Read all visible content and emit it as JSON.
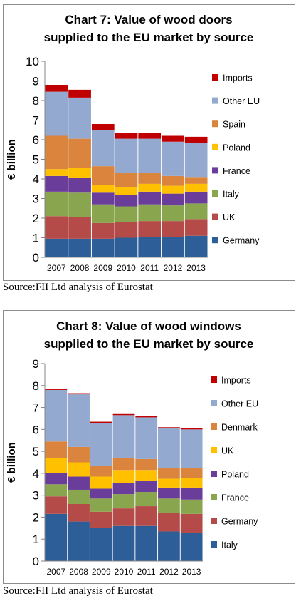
{
  "chart_data": [
    {
      "type": "bar",
      "stacked": true,
      "title_line1": "Chart 7: Value of wood doors",
      "title_line2": "supplied to the EU market by source",
      "xlabel": "",
      "ylabel": "€ billion",
      "ylim": [
        0,
        10
      ],
      "yticks": [
        "0",
        "1",
        "2",
        "3",
        "4",
        "5",
        "6",
        "7",
        "8",
        "9",
        "10"
      ],
      "grid": false,
      "legend_position": "right",
      "categories": [
        "2007",
        "2008",
        "2009",
        "2010",
        "2011",
        "2012",
        "2013"
      ],
      "series": [
        {
          "name": "Germany",
          "color": "#2e5e97",
          "values": [
            0.95,
            0.95,
            0.95,
            1.0,
            1.05,
            1.05,
            1.1
          ]
        },
        {
          "name": "UK",
          "color": "#b54b48",
          "values": [
            1.15,
            1.1,
            0.8,
            0.8,
            0.8,
            0.8,
            0.85
          ]
        },
        {
          "name": "Italy",
          "color": "#89a54e",
          "values": [
            1.25,
            1.25,
            0.95,
            0.8,
            0.85,
            0.8,
            0.8
          ]
        },
        {
          "name": "France",
          "color": "#6b3d9a",
          "values": [
            0.8,
            0.75,
            0.6,
            0.6,
            0.65,
            0.6,
            0.6
          ]
        },
        {
          "name": "Poland",
          "color": "#ffc000",
          "values": [
            0.35,
            0.5,
            0.4,
            0.4,
            0.4,
            0.4,
            0.4
          ]
        },
        {
          "name": "Spain",
          "color": "#db843d",
          "values": [
            1.7,
            1.5,
            0.95,
            0.7,
            0.55,
            0.5,
            0.35
          ]
        },
        {
          "name": "Other EU",
          "color": "#93a9cf",
          "values": [
            2.25,
            2.1,
            1.85,
            1.75,
            1.75,
            1.75,
            1.75
          ]
        },
        {
          "name": "Imports",
          "color": "#c00000",
          "values": [
            0.35,
            0.4,
            0.3,
            0.3,
            0.3,
            0.3,
            0.3
          ]
        }
      ],
      "legend_order": [
        "Imports",
        "Other EU",
        "Spain",
        "Poland",
        "France",
        "Italy",
        "UK",
        "Germany"
      ]
    },
    {
      "type": "bar",
      "stacked": true,
      "title_line1": "Chart 8: Value of wood windows",
      "title_line2": "supplied to the EU market by source",
      "xlabel": "",
      "ylabel": "€ billion",
      "ylim": [
        0,
        9
      ],
      "yticks": [
        "0",
        "1",
        "2",
        "3",
        "4",
        "5",
        "6",
        "7",
        "8",
        "9"
      ],
      "grid": false,
      "legend_position": "right",
      "categories": [
        "2007",
        "2008",
        "2009",
        "2010",
        "2011",
        "2012",
        "2013"
      ],
      "series": [
        {
          "name": "Italy",
          "color": "#2e5e97",
          "values": [
            2.15,
            1.8,
            1.5,
            1.6,
            1.6,
            1.35,
            1.3
          ]
        },
        {
          "name": "Germany",
          "color": "#b54b48",
          "values": [
            0.8,
            0.8,
            0.75,
            0.8,
            0.9,
            0.85,
            0.85
          ]
        },
        {
          "name": "France",
          "color": "#89a54e",
          "values": [
            0.55,
            0.65,
            0.6,
            0.65,
            0.65,
            0.65,
            0.65
          ]
        },
        {
          "name": "Poland",
          "color": "#6b3d9a",
          "values": [
            0.5,
            0.6,
            0.45,
            0.5,
            0.5,
            0.5,
            0.55
          ]
        },
        {
          "name": "UK",
          "color": "#ffc000",
          "values": [
            0.7,
            0.65,
            0.55,
            0.6,
            0.5,
            0.4,
            0.45
          ]
        },
        {
          "name": "Denmark",
          "color": "#db843d",
          "values": [
            0.75,
            0.7,
            0.5,
            0.55,
            0.5,
            0.5,
            0.45
          ]
        },
        {
          "name": "Other EU",
          "color": "#93a9cf",
          "values": [
            2.35,
            2.4,
            1.95,
            1.95,
            1.9,
            1.8,
            1.75
          ]
        },
        {
          "name": "Imports",
          "color": "#c00000",
          "values": [
            0.05,
            0.05,
            0.05,
            0.05,
            0.05,
            0.05,
            0.05
          ]
        }
      ],
      "legend_order": [
        "Imports",
        "Other EU",
        "Denmark",
        "UK",
        "Poland",
        "France",
        "Germany",
        "Italy"
      ]
    }
  ],
  "sources": [
    "Source:FII Ltd analysis of Eurostat",
    "Source:FII Ltd analysis of Eurostat"
  ]
}
